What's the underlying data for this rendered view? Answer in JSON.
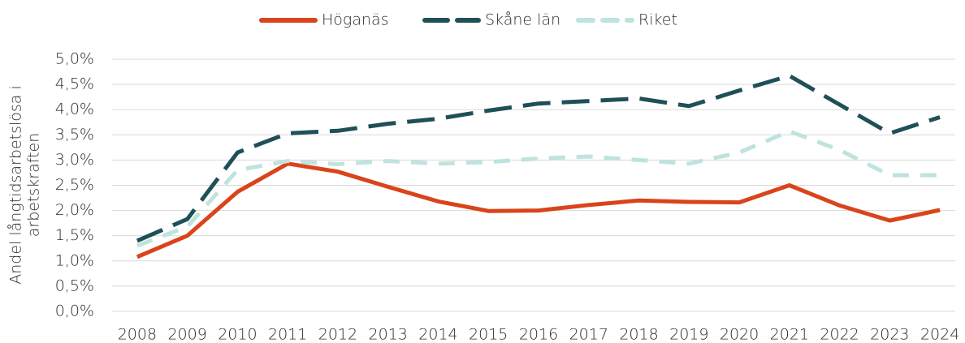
{
  "chart_data": {
    "type": "line",
    "ylabel": [
      "Andel långtidsarbetslösa i",
      "arbetskraften"
    ],
    "categories": [
      "2008",
      "2009",
      "2010",
      "2011",
      "2012",
      "2013",
      "2014",
      "2015",
      "2016",
      "2017",
      "2018",
      "2019",
      "2020",
      "2021",
      "2022",
      "2023",
      "2024"
    ],
    "series": [
      {
        "name": "Höganäs",
        "color": "#d9441a",
        "dash": "solid",
        "values": [
          1.08,
          1.5,
          2.37,
          2.93,
          2.77,
          2.47,
          2.18,
          1.99,
          2.0,
          2.11,
          2.2,
          2.17,
          2.16,
          2.5,
          2.1,
          1.8,
          2.01
        ]
      },
      {
        "name": "Skåne län",
        "color": "#1f5058",
        "dash": "long",
        "values": [
          1.4,
          1.83,
          3.15,
          3.53,
          3.58,
          3.72,
          3.82,
          3.98,
          4.12,
          4.17,
          4.22,
          4.07,
          4.38,
          4.67,
          4.1,
          3.53,
          3.85
        ]
      },
      {
        "name": "Riket",
        "color": "#bfe3df",
        "dash": "short",
        "values": [
          1.3,
          1.68,
          2.8,
          2.98,
          2.92,
          2.98,
          2.93,
          2.96,
          3.03,
          3.07,
          3.0,
          2.93,
          3.15,
          3.57,
          3.2,
          2.7,
          2.7
        ]
      }
    ],
    "ylim": [
      0,
      5
    ],
    "yticks": [
      {
        "value": 0,
        "label": "0,0%"
      },
      {
        "value": 0.5,
        "label": "0,5%"
      },
      {
        "value": 1,
        "label": "1,0%"
      },
      {
        "value": 1.5,
        "label": "1,5%"
      },
      {
        "value": 2,
        "label": "2,0%"
      },
      {
        "value": 2.5,
        "label": "2,5%"
      },
      {
        "value": 3,
        "label": "3,0%"
      },
      {
        "value": 3.5,
        "label": "3,5%"
      },
      {
        "value": 4,
        "label": "4,0%"
      },
      {
        "value": 4.5,
        "label": "4,5%"
      },
      {
        "value": 5,
        "label": "5,0%"
      }
    ],
    "grid": true,
    "legend": "top"
  }
}
